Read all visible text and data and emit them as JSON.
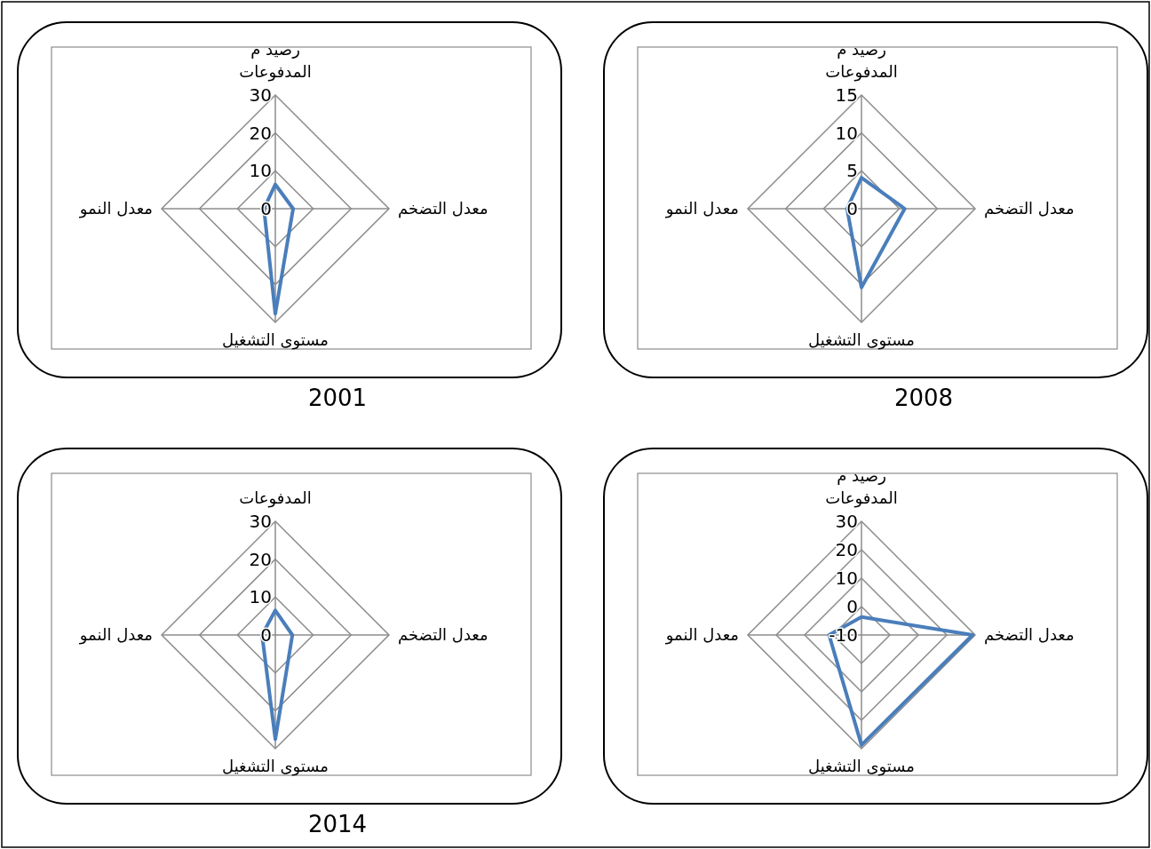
{
  "chart_data": [
    {
      "type": "radar",
      "title": "2001",
      "categories": [
        "رصيد م المدفوعات",
        "معدل التضخم",
        "مستوى التشغيل",
        "معدل النمو"
      ],
      "ylim": [
        0,
        30
      ],
      "yticks": [
        0,
        10,
        20,
        30
      ],
      "grid": true,
      "series": [
        {
          "color": "#4a7ebb",
          "values": [
            6.4,
            4.7,
            27.7,
            3.0
          ]
        }
      ]
    },
    {
      "type": "radar",
      "title": "2008",
      "categories": [
        "رصيد م المدفوعات",
        "معدل التضخم",
        "مستوى التشغيل",
        "معدل النمو"
      ],
      "ylim": [
        0,
        15
      ],
      "yticks": [
        0,
        5,
        10,
        15
      ],
      "grid": true,
      "series": [
        {
          "color": "#4a7ebb",
          "values": [
            4.1,
            5.7,
            10.4,
            1.9
          ]
        }
      ]
    },
    {
      "type": "radar",
      "title": "2014",
      "categories": [
        "المدفوعات",
        "معدل التضخم",
        "مستوى التشغيل",
        "معدل النمو"
      ],
      "ylim": [
        0,
        30
      ],
      "yticks": [
        0,
        10,
        20,
        30
      ],
      "grid": true,
      "series": [
        {
          "color": "#4a7ebb",
          "values": [
            6.5,
            4.5,
            27.5,
            3.5
          ]
        }
      ]
    },
    {
      "type": "radar",
      "categories": [
        "رصيد م المدفوعات",
        "معدل التضخم",
        "مستوى التشغيل",
        "معدل النمو"
      ],
      "ylim": [
        -10,
        30
      ],
      "yticks": [
        -10,
        0,
        10,
        20,
        30
      ],
      "grid": true,
      "series": [
        {
          "color": "#4a7ebb",
          "values": [
            -3.7,
            29.1,
            28.7,
            1.4
          ]
        }
      ]
    }
  ]
}
